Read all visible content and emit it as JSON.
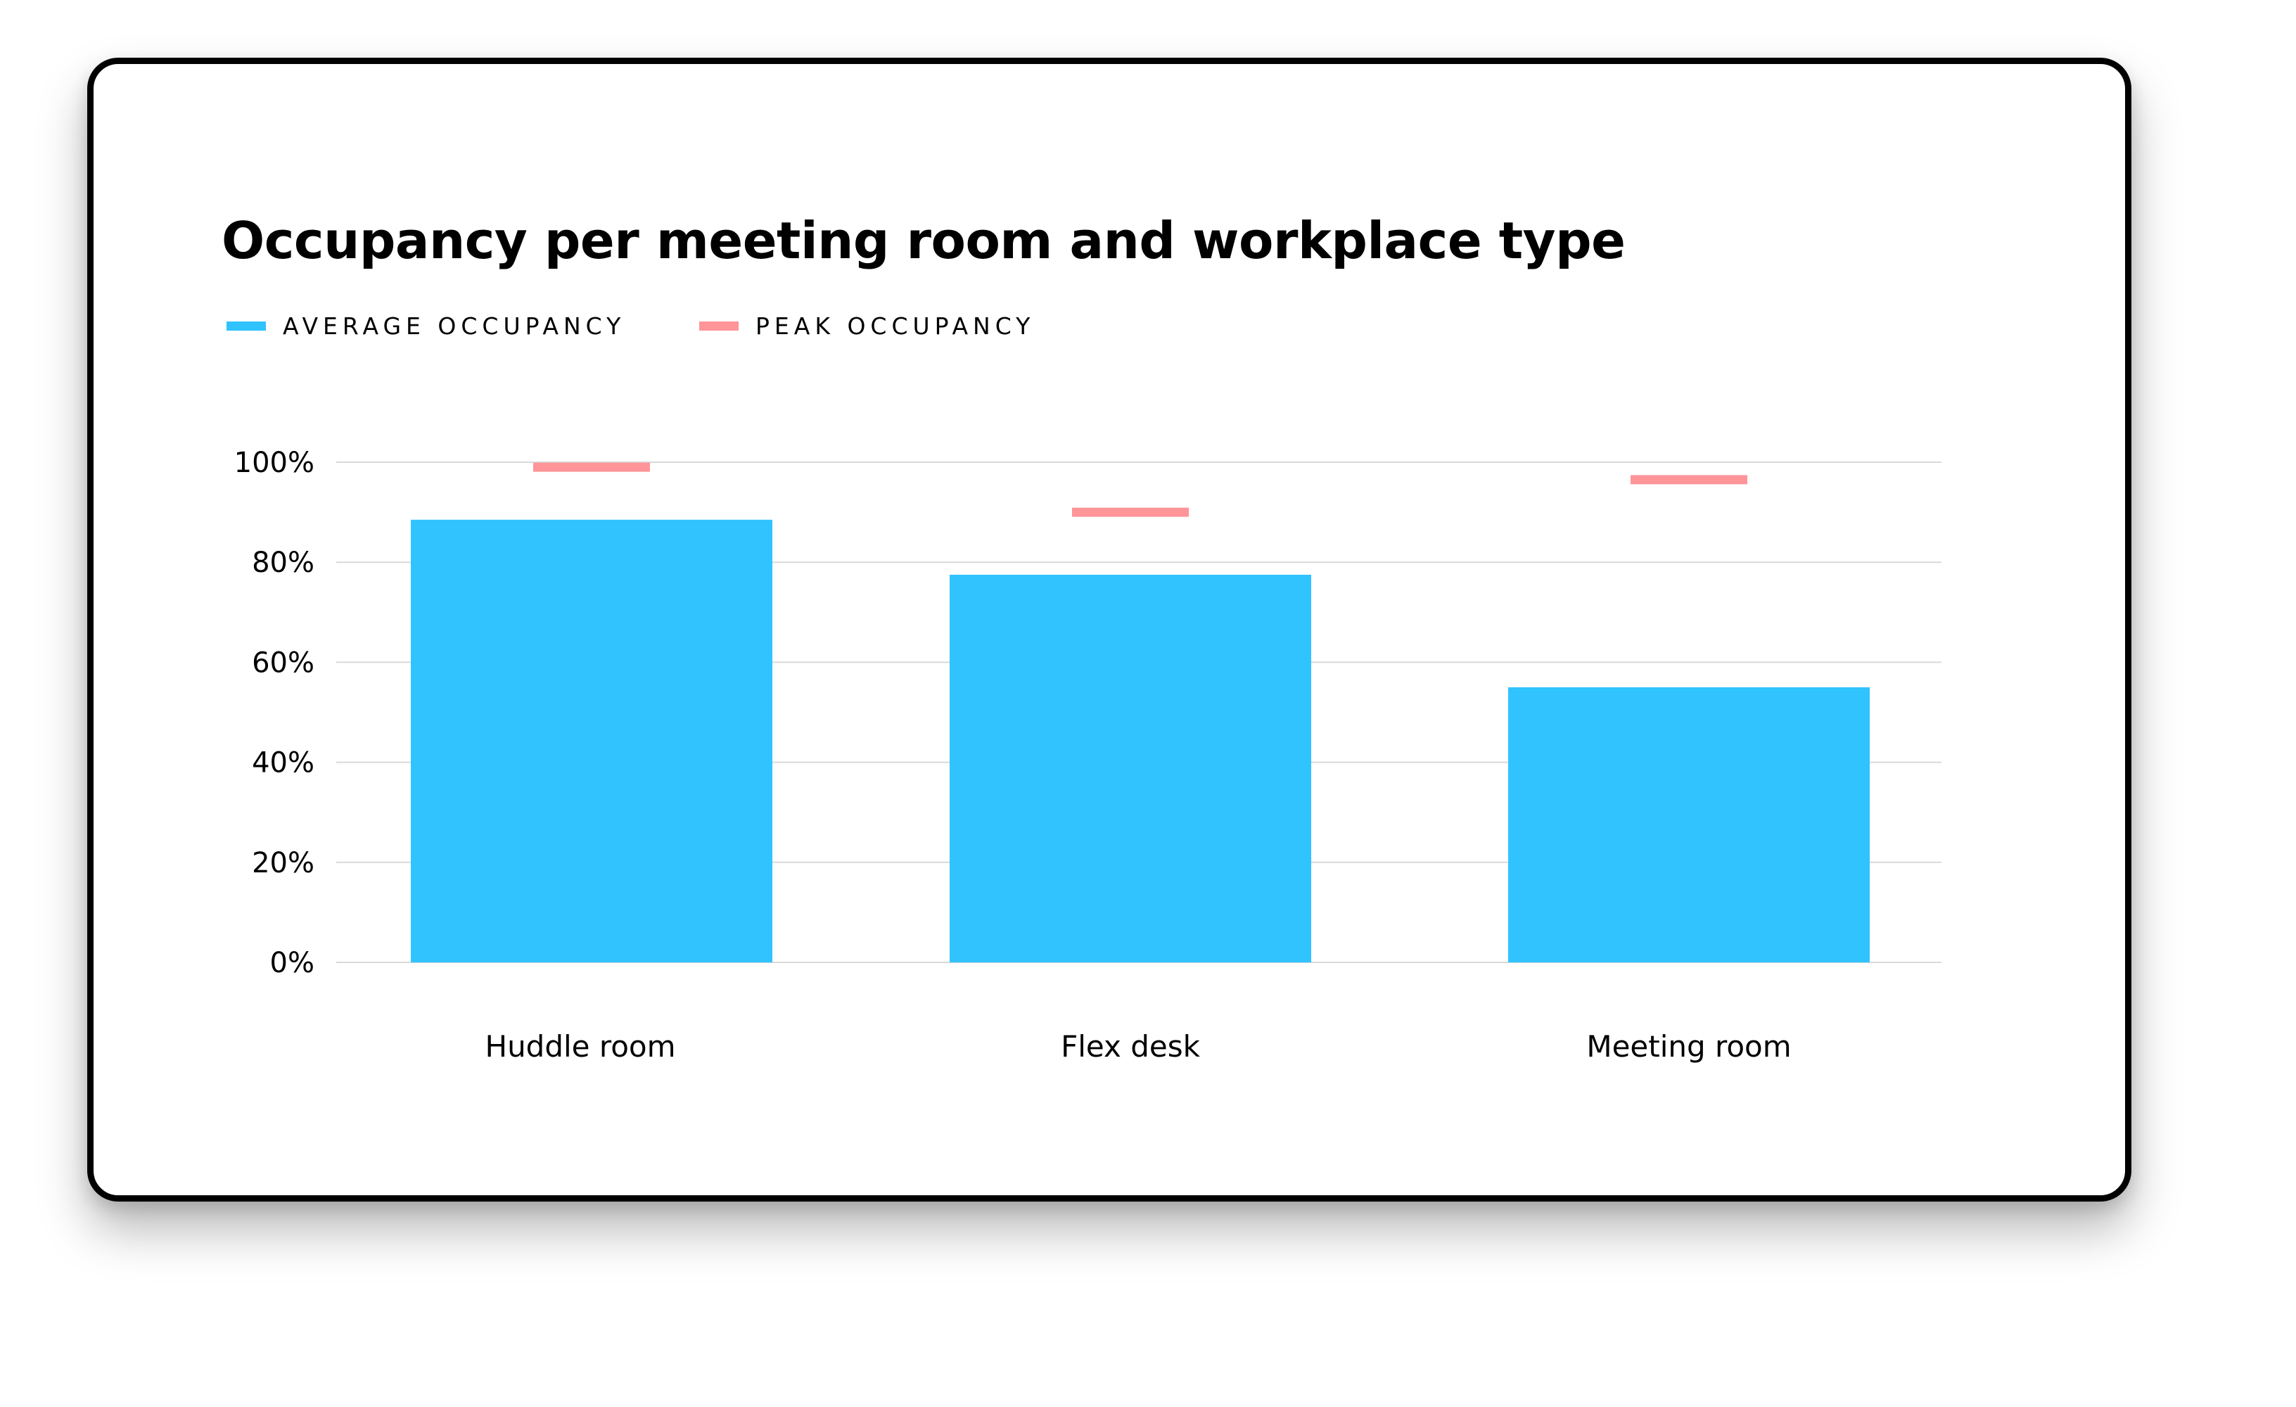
{
  "chart_data": {
    "type": "bar",
    "title": "Occupancy per meeting room and workplace type",
    "xlabel": "",
    "ylabel": "",
    "categories": [
      "Huddle room",
      "Flex desk",
      "Meeting room"
    ],
    "series": [
      {
        "name": "AVERAGE OCCUPANCY",
        "values": [
          88.5,
          77.5,
          55
        ],
        "color": "#30C3FE",
        "mark": "bar"
      },
      {
        "name": "PEAK OCCUPANCY",
        "values": [
          99,
          90,
          96.5
        ],
        "color": "#FF9499",
        "mark": "dash"
      }
    ],
    "ylim": [
      0,
      100
    ],
    "yticks": [
      0,
      20,
      40,
      60,
      80,
      100
    ],
    "yticklabels": [
      "0%",
      "20%",
      "40%",
      "60%",
      "80%",
      "100%"
    ],
    "grid": true,
    "gridcolor": "#D9D9D9",
    "legend_position": "top-left"
  }
}
